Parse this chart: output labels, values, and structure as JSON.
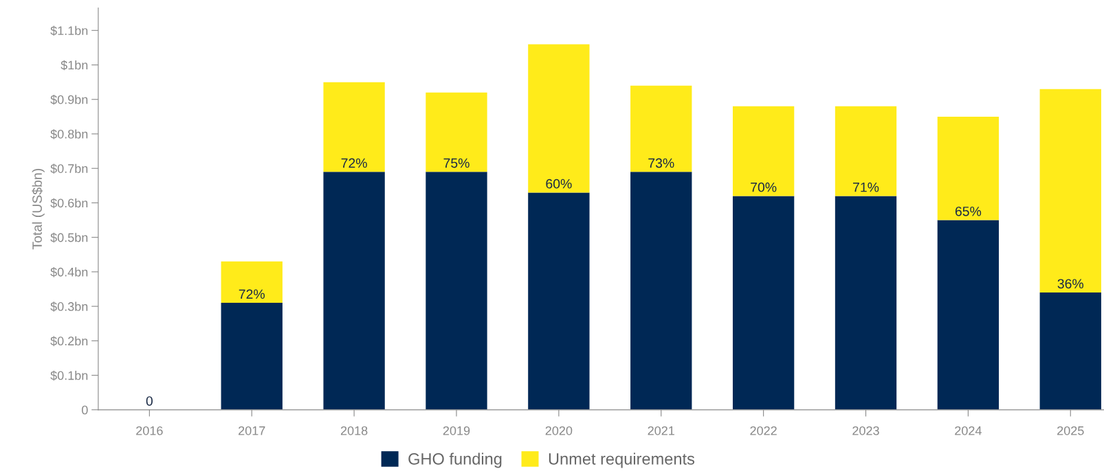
{
  "chart_data": {
    "type": "bar",
    "stacked": true,
    "ylabel": "Total (US$bn)",
    "categories": [
      "2016",
      "2017",
      "2018",
      "2019",
      "2020",
      "2021",
      "2022",
      "2023",
      "2024",
      "2025"
    ],
    "series": [
      {
        "name": "GHO funding",
        "color": "#002855",
        "values": [
          0,
          0.31,
          0.69,
          0.69,
          0.63,
          0.69,
          0.62,
          0.62,
          0.55,
          0.34
        ]
      },
      {
        "name": "Unmet requirements",
        "color": "#ffeb1a",
        "values": [
          0,
          0.12,
          0.26,
          0.23,
          0.43,
          0.25,
          0.26,
          0.26,
          0.3,
          0.59
        ]
      }
    ],
    "ylim": [
      0,
      1.165
    ],
    "yticks": [
      {
        "value": 0,
        "label": "0"
      },
      {
        "value": 0.1,
        "label": "$0.1bn"
      },
      {
        "value": 0.2,
        "label": "$0.2bn"
      },
      {
        "value": 0.3,
        "label": "$0.3bn"
      },
      {
        "value": 0.4,
        "label": "$0.4bn"
      },
      {
        "value": 0.5,
        "label": "$0.5bn"
      },
      {
        "value": 0.6,
        "label": "$0.6bn"
      },
      {
        "value": 0.7,
        "label": "$0.7bn"
      },
      {
        "value": 0.8,
        "label": "$0.8bn"
      },
      {
        "value": 0.9,
        "label": "$0.9bn"
      },
      {
        "value": 1,
        "label": "$1bn"
      },
      {
        "value": 1.1,
        "label": "$1.1bn"
      }
    ],
    "annotations": [
      {
        "text": "0",
        "x": "2016",
        "y": 0
      },
      {
        "text": "72%",
        "x": "2017",
        "y": 0.31
      },
      {
        "text": "72%",
        "x": "2018",
        "y": 0.69
      },
      {
        "text": "75%",
        "x": "2019",
        "y": 0.69
      },
      {
        "text": "60%",
        "x": "2020",
        "y": 0.63
      },
      {
        "text": "73%",
        "x": "2021",
        "y": 0.69
      },
      {
        "text": "70%",
        "x": "2022",
        "y": 0.62
      },
      {
        "text": "71%",
        "x": "2023",
        "y": 0.62
      },
      {
        "text": "65%",
        "x": "2024",
        "y": 0.55
      },
      {
        "text": "36%",
        "x": "2025",
        "y": 0.34
      }
    ],
    "grid": false,
    "legend": "bottom"
  }
}
